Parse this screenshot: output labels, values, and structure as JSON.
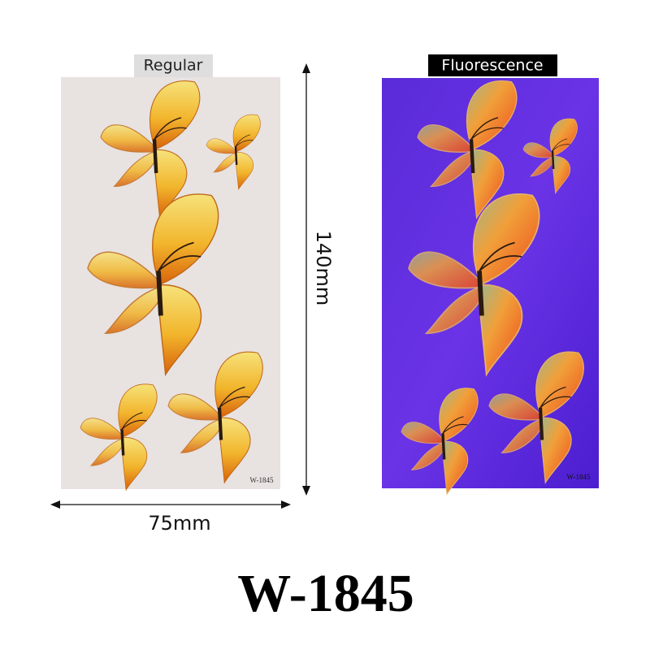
{
  "panels": [
    {
      "label": "Regular",
      "code": "W-1845"
    },
    {
      "label": "Fluorescence",
      "code": "W-1845"
    }
  ],
  "dimensions": {
    "height": "140mm",
    "width": "75mm"
  },
  "product_code": "W-1845"
}
